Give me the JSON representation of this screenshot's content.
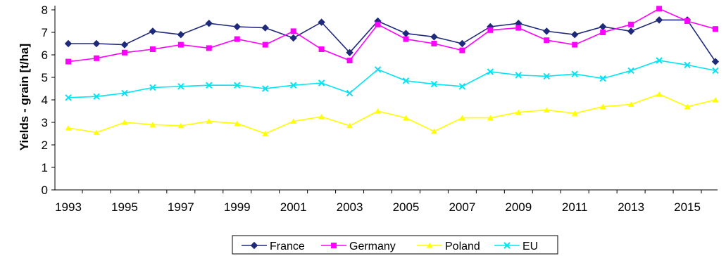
{
  "chart_data": {
    "type": "line",
    "xlabel": "",
    "ylabel": "Yields - grain [t/ha]",
    "ylim": [
      0,
      8
    ],
    "yticks": [
      0,
      1,
      2,
      3,
      4,
      5,
      6,
      7,
      8
    ],
    "x": [
      1993,
      1994,
      1995,
      1996,
      1997,
      1998,
      1999,
      2000,
      2001,
      2002,
      2003,
      2004,
      2005,
      2006,
      2007,
      2008,
      2009,
      2010,
      2011,
      2012,
      2013,
      2014,
      2015,
      2016
    ],
    "xtick_labels": [
      "1993",
      "1995",
      "1997",
      "1999",
      "2001",
      "2003",
      "2005",
      "2007",
      "2009",
      "2011",
      "2013",
      "2015"
    ],
    "grid": false,
    "legend_position": "bottom",
    "series": [
      {
        "name": "France",
        "color": "#1f2a7a",
        "marker": "diamond",
        "values": [
          6.5,
          6.5,
          6.45,
          7.05,
          6.9,
          7.4,
          7.25,
          7.2,
          6.75,
          7.45,
          6.1,
          7.5,
          6.95,
          6.8,
          6.5,
          7.25,
          7.4,
          7.05,
          6.9,
          7.25,
          7.05,
          7.55,
          7.55,
          5.7
        ]
      },
      {
        "name": "Germany",
        "color": "#ff00ff",
        "marker": "square",
        "values": [
          5.7,
          5.85,
          6.1,
          6.25,
          6.45,
          6.3,
          6.7,
          6.45,
          7.05,
          6.25,
          5.75,
          7.35,
          6.7,
          6.5,
          6.2,
          7.1,
          7.2,
          6.65,
          6.45,
          7.0,
          7.35,
          8.05,
          7.5,
          7.15
        ]
      },
      {
        "name": "Poland",
        "color": "#ffff00",
        "marker": "triangle",
        "values": [
          2.75,
          2.55,
          3.0,
          2.9,
          2.85,
          3.05,
          2.95,
          2.5,
          3.05,
          3.25,
          2.85,
          3.5,
          3.2,
          2.6,
          3.2,
          3.2,
          3.45,
          3.55,
          3.4,
          3.7,
          3.8,
          4.25,
          3.7,
          4.0
        ]
      },
      {
        "name": "EU",
        "color": "#00e5f5",
        "marker": "x",
        "values": [
          4.1,
          4.15,
          4.3,
          4.55,
          4.6,
          4.65,
          4.65,
          4.5,
          4.65,
          4.75,
          4.3,
          5.35,
          4.85,
          4.7,
          4.6,
          5.25,
          5.1,
          5.05,
          5.15,
          4.95,
          5.3,
          5.75,
          5.55,
          5.3
        ]
      }
    ]
  }
}
